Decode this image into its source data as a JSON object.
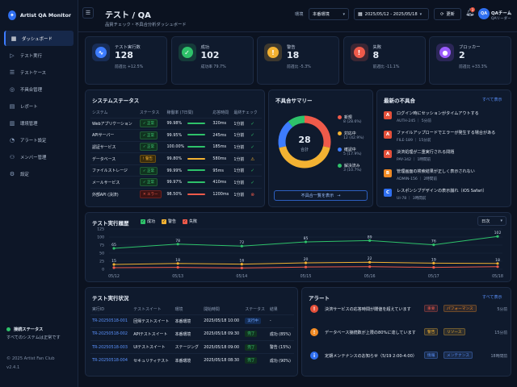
{
  "app": {
    "name": "Artist QA Monitor"
  },
  "sidebar": {
    "items": [
      {
        "label": "ダッシュボード",
        "icon": "grid-icon"
      },
      {
        "label": "テスト実行",
        "icon": "play-icon"
      },
      {
        "label": "テストケース",
        "icon": "list-icon"
      },
      {
        "label": "不具合管理",
        "icon": "bug-icon"
      },
      {
        "label": "レポート",
        "icon": "report-icon"
      },
      {
        "label": "環境管理",
        "icon": "server-icon"
      },
      {
        "label": "アラート設定",
        "icon": "bell-icon"
      },
      {
        "label": "メンバー管理",
        "icon": "users-icon"
      },
      {
        "label": "設定",
        "icon": "gear-icon"
      }
    ],
    "status_title": "接続ステータス",
    "status_text": "すべてのシステムは正常です",
    "copyright": "© 2025 Artist Fan Club",
    "version": "v2.4.1"
  },
  "header": {
    "title": "テスト / QA",
    "subtitle": "品質チェック・不具合分析ダッシュボード",
    "env_label": "環境",
    "env_value": "本番環境",
    "date_range": "2025/05/12 - 2025/05/18",
    "refresh_label": "更新",
    "notification_count": "3",
    "user_initials": "QA",
    "user_name": "QAチーム",
    "user_role": "QAリーダー"
  },
  "kpis": [
    {
      "label": "テスト実行数",
      "value": "128",
      "delta": "前週比 +12.5%",
      "color": "#3d7cff",
      "icon": "pulse-icon",
      "glyph": "∿"
    },
    {
      "label": "成功",
      "value": "102",
      "delta": "成功率 79.7%",
      "color": "#2ec26a",
      "icon": "check-icon",
      "glyph": "✓"
    },
    {
      "label": "警告",
      "value": "18",
      "delta": "前週比 -5.3%",
      "color": "#f3b232",
      "icon": "warning-icon",
      "glyph": "!"
    },
    {
      "label": "失敗",
      "value": "8",
      "delta": "前週比 -11.1%",
      "color": "#ef5a4a",
      "icon": "fail-icon",
      "glyph": "!"
    },
    {
      "label": "ブロッカー",
      "value": "2",
      "delta": "前週比 +33.3%",
      "color": "#9b5cff",
      "icon": "blocker-icon",
      "glyph": "●"
    }
  ],
  "system_status": {
    "title": "システムステータス",
    "columns": [
      "システム",
      "ステータス",
      "稼働率 (7日間)",
      "応答時間",
      "最終チェック"
    ],
    "rows": [
      {
        "name": "Webアプリケーション",
        "status": "正常",
        "level": "ok",
        "uptime": "99.98%",
        "uptime_pct": 99.98,
        "response": "320ms",
        "last": "1分前",
        "check": "ok"
      },
      {
        "name": "APIサーバー",
        "status": "正常",
        "level": "ok",
        "uptime": "99.95%",
        "uptime_pct": 99.95,
        "response": "245ms",
        "last": "1分前",
        "check": "ok"
      },
      {
        "name": "認証サービス",
        "status": "正常",
        "level": "ok",
        "uptime": "100.00%",
        "uptime_pct": 100,
        "response": "185ms",
        "last": "1分前",
        "check": "ok"
      },
      {
        "name": "データベース",
        "status": "警告",
        "level": "warn",
        "uptime": "99.80%",
        "uptime_pct": 99.8,
        "response": "580ms",
        "last": "1分前",
        "check": "warn"
      },
      {
        "name": "ファイルストレージ",
        "status": "正常",
        "level": "ok",
        "uptime": "99.99%",
        "uptime_pct": 99.99,
        "response": "95ms",
        "last": "1分前",
        "check": "ok"
      },
      {
        "name": "メールサービス",
        "status": "正常",
        "level": "ok",
        "uptime": "99.97%",
        "uptime_pct": 99.97,
        "response": "410ms",
        "last": "1分前",
        "check": "ok"
      },
      {
        "name": "外部API (決済)",
        "status": "エラー",
        "level": "err",
        "uptime": "98.50%",
        "uptime_pct": 98.5,
        "response": "1200ms",
        "last": "1分前",
        "check": "err"
      }
    ]
  },
  "defect_summary": {
    "title": "不具合サマリー",
    "total": "28",
    "total_label": "合計",
    "segments": [
      {
        "label": "新規",
        "count": "8 (28.6%)",
        "value": 8,
        "color": "#ef5a4a"
      },
      {
        "label": "対応中",
        "count": "12 (42.9%)",
        "value": 12,
        "color": "#f3b232"
      },
      {
        "label": "確認中",
        "count": "5 (17.9%)",
        "value": 5,
        "color": "#3d7cff"
      },
      {
        "label": "解決済み",
        "count": "3 (10.7%)",
        "value": 3,
        "color": "#2ec26a"
      }
    ],
    "button_label": "不具合一覧を表示"
  },
  "latest_bugs": {
    "title": "最新の不具合",
    "link": "すべて表示",
    "items": [
      {
        "sev": "A",
        "color": "#e4503a",
        "title": "ログイン時にセッションがタイムアウトする",
        "meta": "AUTH-245 ｜ 5分前"
      },
      {
        "sev": "A",
        "color": "#e4503a",
        "title": "ファイルアップロードでエラーが発生する場合がある",
        "meta": "FILE-189 ｜ 15分前"
      },
      {
        "sev": "A",
        "color": "#e4503a",
        "title": "決済処理が二重実行される問題",
        "meta": "PAY-342 ｜ 1時間前"
      },
      {
        "sev": "B",
        "color": "#f08a24",
        "title": "管理画面の検索結果が正しく表示されない",
        "meta": "ADMIN-156 ｜ 2時間前"
      },
      {
        "sev": "C",
        "color": "#2f6ff0",
        "title": "レスポンシブデザインの表示崩れ（iOS Safari）",
        "meta": "UI-78 ｜ 3時間前"
      }
    ]
  },
  "history": {
    "title": "テスト実行履歴",
    "legend": [
      "成功",
      "警告",
      "失敗"
    ],
    "range_label": "日次"
  },
  "chart_data": {
    "type": "line",
    "categories": [
      "05/12",
      "05/13",
      "05/14",
      "05/15",
      "05/16",
      "05/17",
      "05/18"
    ],
    "ylim": [
      0,
      125
    ],
    "yticks": [
      0,
      25,
      50,
      75,
      100,
      125
    ],
    "grid": true,
    "series": [
      {
        "name": "成功",
        "color": "#2ec26a",
        "values": [
          65,
          78,
          72,
          85,
          89,
          76,
          102
        ],
        "labels": [
          true,
          true,
          true,
          true,
          true,
          true,
          true
        ]
      },
      {
        "name": "警告",
        "color": "#f3b232",
        "values": [
          15,
          18,
          16,
          20,
          22,
          19,
          18
        ],
        "labels": [
          true,
          true,
          true,
          true,
          true,
          true,
          true
        ]
      },
      {
        "name": "失敗",
        "color": "#ef5a4a",
        "values": [
          5,
          6,
          4,
          7,
          8,
          6,
          8
        ],
        "labels": [
          false,
          false,
          false,
          false,
          false,
          false,
          false
        ]
      }
    ]
  },
  "runs": {
    "title": "テスト実行状況",
    "columns": [
      "実行ID",
      "テストスイート",
      "環境",
      "開始時間",
      "ステータス",
      "結果"
    ],
    "rows": [
      {
        "id": "TR-20250518-001",
        "suite": "回帰テストスイート",
        "env": "本番環境",
        "start": "2025/05/18 10:00",
        "status": "実行中",
        "kind": "run",
        "result": "-"
      },
      {
        "id": "TR-20250518-002",
        "suite": "APIテストスイート",
        "env": "本番環境",
        "start": "2025/05/18 09:30",
        "status": "完了",
        "kind": "done",
        "result": "成功 (85%)"
      },
      {
        "id": "TR-20250518-003",
        "suite": "UIテストスイート",
        "env": "ステージング",
        "start": "2025/05/18 09:00",
        "status": "完了",
        "kind": "done",
        "result": "警告 (15%)"
      },
      {
        "id": "TR-20250518-004",
        "suite": "セキュリティテスト",
        "env": "本番環境",
        "start": "2025/05/18 08:30",
        "status": "完了",
        "kind": "done",
        "result": "成功 (90%)"
      }
    ]
  },
  "alerts": {
    "title": "アラート",
    "link": "すべて表示",
    "items": [
      {
        "icon": "!",
        "color": "#e4503a",
        "text": "決済サービスの応答時間が閾値を超えています",
        "tag1": "重要",
        "tag1_color": "#ef5a4a",
        "tag2": "パフォーマンス",
        "tag2_color": "#f08a24",
        "time": "5分前"
      },
      {
        "icon": "!",
        "color": "#f08a24",
        "text": "データベース接続数が上限の80%に達しています",
        "tag1": "警告",
        "tag1_color": "#f3b232",
        "tag2": "リソース",
        "tag2_color": "#f3b232",
        "time": "15分前"
      },
      {
        "icon": "i",
        "color": "#2f6ff0",
        "text": "定期メンテナンスのお知らせ（5/19 2:00-4:00）",
        "tag1": "情報",
        "tag1_color": "#5b93ff",
        "tag2": "メンテナンス",
        "tag2_color": "#5b93ff",
        "time": "18時間前"
      }
    ]
  }
}
